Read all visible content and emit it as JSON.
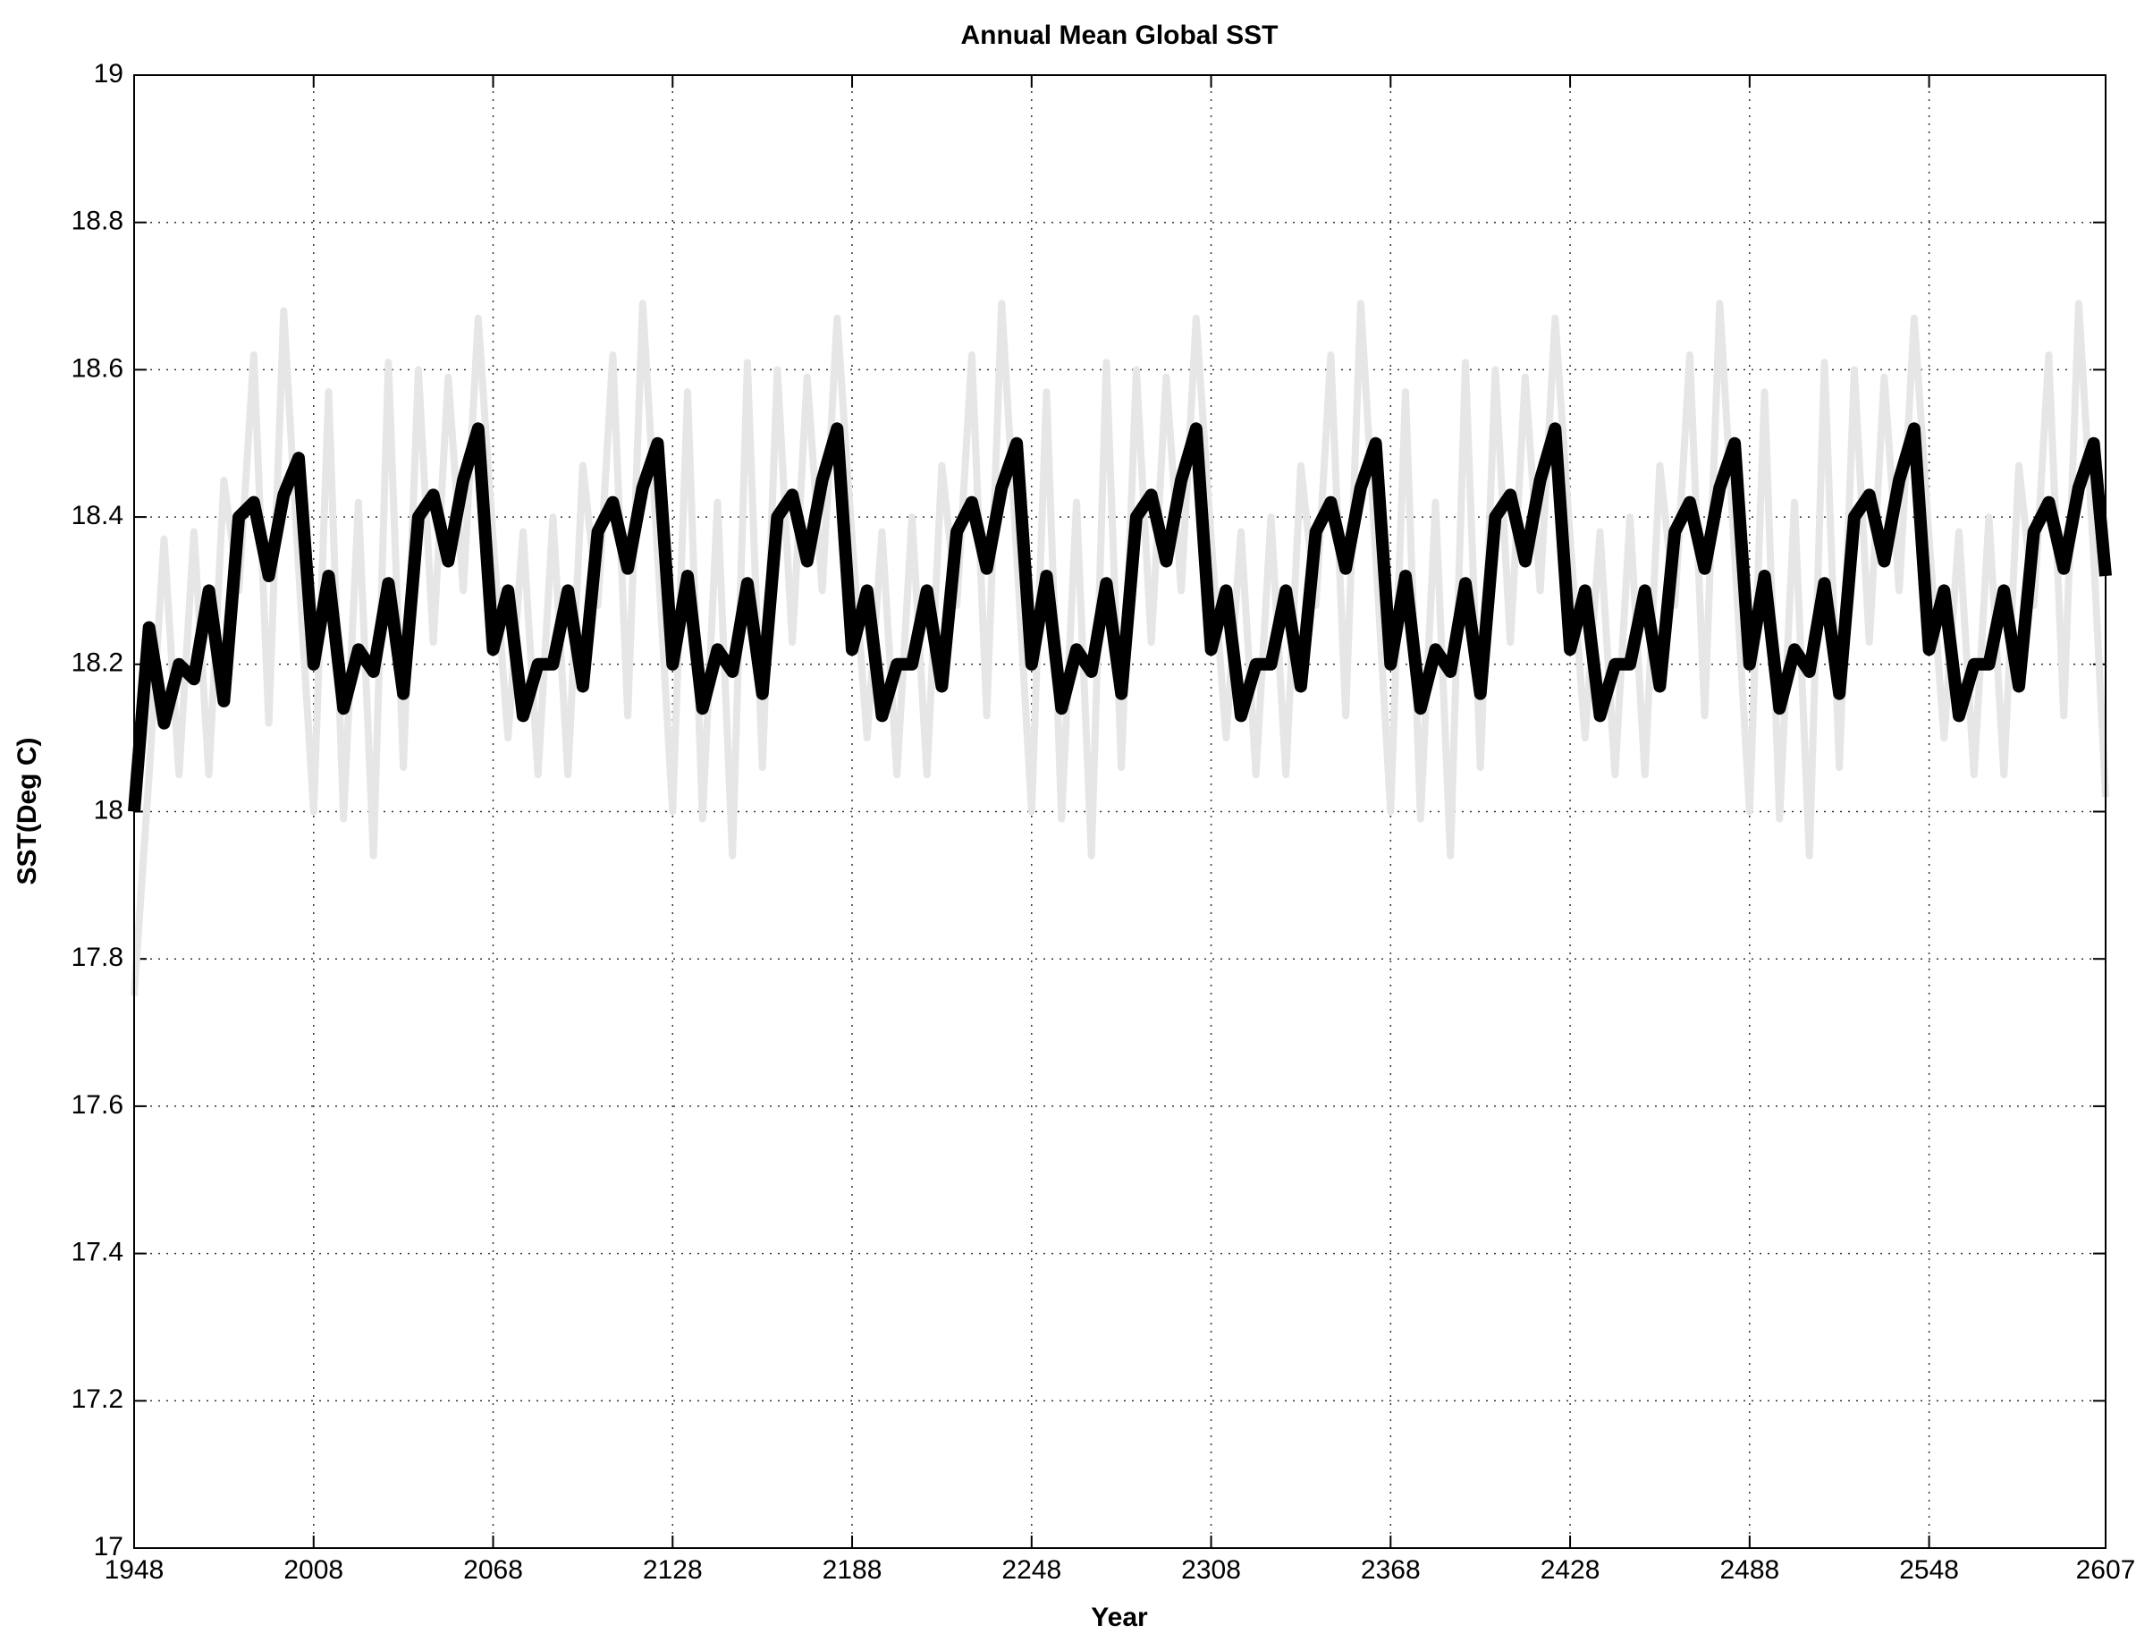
{
  "chart_data": {
    "type": "line",
    "title": "Annual Mean Global SST",
    "xlabel": "Year",
    "ylabel": "SST(Deg C)",
    "x": [
      1948,
      1953,
      1958,
      1963,
      1968,
      1973,
      1978,
      1983,
      1988,
      1993,
      1998,
      2003,
      2008,
      2013,
      2018,
      2023,
      2028,
      2033,
      2038,
      2043,
      2048,
      2053,
      2058,
      2063,
      2068,
      2073,
      2078,
      2083,
      2088,
      2093,
      2098,
      2103,
      2108,
      2113,
      2118,
      2123,
      2128,
      2133,
      2138,
      2143,
      2148,
      2153,
      2158,
      2163,
      2168,
      2173,
      2178,
      2183,
      2188,
      2193,
      2198,
      2203,
      2208,
      2213,
      2218,
      2223,
      2228,
      2233,
      2238,
      2243,
      2248,
      2253,
      2258,
      2263,
      2268,
      2273,
      2278,
      2283,
      2288,
      2293,
      2298,
      2303,
      2308,
      2313,
      2318,
      2323,
      2328,
      2333,
      2338,
      2343,
      2348,
      2353,
      2358,
      2363,
      2368,
      2373,
      2378,
      2383,
      2388,
      2393,
      2398,
      2403,
      2408,
      2413,
      2418,
      2423,
      2428,
      2433,
      2438,
      2443,
      2448,
      2453,
      2458,
      2463,
      2468,
      2473,
      2478,
      2483,
      2488,
      2493,
      2498,
      2503,
      2508,
      2513,
      2518,
      2523,
      2528,
      2533,
      2538,
      2543,
      2548,
      2553,
      2558,
      2563,
      2568,
      2573,
      2578,
      2583,
      2588,
      2593,
      2598,
      2603,
      2607
    ],
    "series": [
      {
        "color": "#e6e6e6",
        "values": [
          17.75,
          18.05,
          18.37,
          18.05,
          18.38,
          18.05,
          18.45,
          18.3,
          18.62,
          18.12,
          18.68,
          18.33,
          18.0,
          18.57,
          17.99,
          18.42,
          17.94,
          18.61,
          18.06,
          18.6,
          18.23,
          18.59,
          18.3,
          18.67,
          18.37,
          18.1,
          18.38,
          18.05,
          18.4,
          18.05,
          18.47,
          18.28,
          18.62,
          18.13,
          18.69,
          18.35,
          18.0,
          18.57,
          17.99,
          18.42,
          17.94,
          18.61,
          18.06,
          18.6,
          18.23,
          18.59,
          18.3,
          18.67,
          18.37,
          18.1,
          18.38,
          18.05,
          18.4,
          18.05,
          18.47,
          18.28,
          18.62,
          18.13,
          18.69,
          18.35,
          18.0,
          18.57,
          17.99,
          18.42,
          17.94,
          18.61,
          18.06,
          18.6,
          18.23,
          18.59,
          18.3,
          18.67,
          18.37,
          18.1,
          18.38,
          18.05,
          18.4,
          18.05,
          18.47,
          18.28,
          18.62,
          18.13,
          18.69,
          18.35,
          18.0,
          18.57,
          17.99,
          18.42,
          17.94,
          18.61,
          18.06,
          18.6,
          18.23,
          18.59,
          18.3,
          18.67,
          18.37,
          18.1,
          18.38,
          18.05,
          18.4,
          18.05,
          18.47,
          18.28,
          18.62,
          18.13,
          18.69,
          18.35,
          18.0,
          18.57,
          17.99,
          18.42,
          17.94,
          18.61,
          18.06,
          18.6,
          18.23,
          18.59,
          18.3,
          18.67,
          18.37,
          18.1,
          18.38,
          18.05,
          18.4,
          18.05,
          18.47,
          18.28,
          18.62,
          18.13,
          18.69,
          18.35,
          18.02
        ]
      },
      {
        "color": "#000000",
        "values": [
          18.0,
          18.25,
          18.12,
          18.2,
          18.18,
          18.3,
          18.15,
          18.4,
          18.42,
          18.32,
          18.43,
          18.48,
          18.2,
          18.32,
          18.14,
          18.22,
          18.19,
          18.31,
          18.16,
          18.4,
          18.43,
          18.34,
          18.45,
          18.52,
          18.22,
          18.3,
          18.13,
          18.2,
          18.2,
          18.3,
          18.17,
          18.38,
          18.42,
          18.33,
          18.44,
          18.5,
          18.2,
          18.32,
          18.14,
          18.22,
          18.19,
          18.31,
          18.16,
          18.4,
          18.43,
          18.34,
          18.45,
          18.52,
          18.22,
          18.3,
          18.13,
          18.2,
          18.2,
          18.3,
          18.17,
          18.38,
          18.42,
          18.33,
          18.44,
          18.5,
          18.2,
          18.32,
          18.14,
          18.22,
          18.19,
          18.31,
          18.16,
          18.4,
          18.43,
          18.34,
          18.45,
          18.52,
          18.22,
          18.3,
          18.13,
          18.2,
          18.2,
          18.3,
          18.17,
          18.38,
          18.42,
          18.33,
          18.44,
          18.5,
          18.2,
          18.32,
          18.14,
          18.22,
          18.19,
          18.31,
          18.16,
          18.4,
          18.43,
          18.34,
          18.45,
          18.52,
          18.22,
          18.3,
          18.13,
          18.2,
          18.2,
          18.3,
          18.17,
          18.38,
          18.42,
          18.33,
          18.44,
          18.5,
          18.2,
          18.32,
          18.14,
          18.22,
          18.19,
          18.31,
          18.16,
          18.4,
          18.43,
          18.34,
          18.45,
          18.52,
          18.22,
          18.3,
          18.13,
          18.2,
          18.2,
          18.3,
          18.17,
          18.38,
          18.42,
          18.33,
          18.44,
          18.5,
          18.32
        ]
      }
    ],
    "xlim": [
      1948,
      2607
    ],
    "xticks": [
      1948,
      2008,
      2068,
      2128,
      2188,
      2248,
      2308,
      2368,
      2428,
      2488,
      2548,
      2607
    ],
    "ylim": [
      17,
      19
    ],
    "yticks": [
      17,
      17.2,
      17.4,
      17.6,
      17.8,
      18,
      18.2,
      18.4,
      18.6,
      18.8,
      19
    ],
    "grid": true
  }
}
